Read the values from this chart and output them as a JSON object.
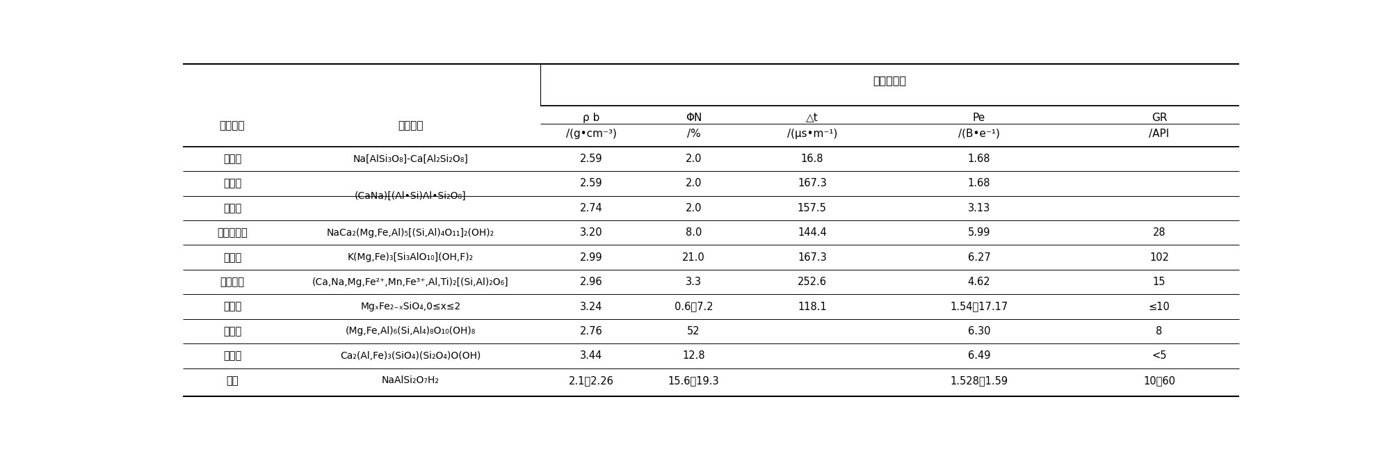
{
  "title": "测井特征值",
  "rows": [
    {
      "mineral": "斜长石",
      "formula": "Na[AlSi₃O₈]-Ca[Al₂Si₂O₈]",
      "formula_shared": false,
      "rho": "2.59",
      "phi": "2.0",
      "dt": "16.8",
      "pe": "1.68",
      "gr": ""
    },
    {
      "mineral": "钠长石",
      "formula": "(CaNa)[(Al•Si)Al•Si₂O₈]",
      "formula_shared": true,
      "rho": "2.59",
      "phi": "2.0",
      "dt": "167.3",
      "pe": "1.68",
      "gr": ""
    },
    {
      "mineral": "钙长石",
      "formula": "",
      "formula_shared": true,
      "rho": "2.74",
      "phi": "2.0",
      "dt": "157.5",
      "pe": "3.13",
      "gr": ""
    },
    {
      "mineral": "普通角闪石",
      "formula": "NaCa₂(Mg,Fe,Al)₅[(Si,Al)₄O₁₁]₂(OH)₂",
      "formula_shared": false,
      "rho": "3.20",
      "phi": "8.0",
      "dt": "144.4",
      "pe": "5.99",
      "gr": "28"
    },
    {
      "mineral": "黑云母",
      "formula": "K(Mg,Fe)₃[Si₃AlO₁₀](OH,F)₂",
      "formula_shared": false,
      "rho": "2.99",
      "phi": "21.0",
      "dt": "167.3",
      "pe": "6.27",
      "gr": "102"
    },
    {
      "mineral": "普通辉石",
      "formula": "(Ca,Na,Mg,Fe²⁺,Mn,Fe³⁺,Al,Ti)₂[(Si,Al)₂O₆]",
      "formula_shared": false,
      "rho": "2.96",
      "phi": "3.3",
      "dt": "252.6",
      "pe": "4.62",
      "gr": "15"
    },
    {
      "mineral": "橄榄石",
      "formula": "MgₓFe₂₋ₓSiO₄,0≤x≤2",
      "formula_shared": false,
      "rho": "3.24",
      "phi": "0.6～7.2",
      "dt": "118.1",
      "pe": "1.54～17.17",
      "gr": "≤10"
    },
    {
      "mineral": "绿泥石",
      "formula": "(Mg,Fe,Al)₆(Si,Al₄)₈O₁₀(OH)₈",
      "formula_shared": false,
      "rho": "2.76",
      "phi": "52",
      "dt": "",
      "pe": "6.30",
      "gr": "8"
    },
    {
      "mineral": "绿帘石",
      "formula": "Ca₂(Al,Fe)₃(SiO₄)(Si₂O₄)O(OH)",
      "formula_shared": false,
      "rho": "3.44",
      "phi": "12.8",
      "dt": "",
      "pe": "6.49",
      "gr": "<5"
    },
    {
      "mineral": "沸石",
      "formula": "NaAlSi₂O₇H₂",
      "formula_shared": false,
      "rho": "2.1～2.26",
      "phi": "15.6～19.3",
      "dt": "",
      "pe": "1.528～1.59",
      "gr": "10～60"
    }
  ],
  "background_color": "#ffffff"
}
